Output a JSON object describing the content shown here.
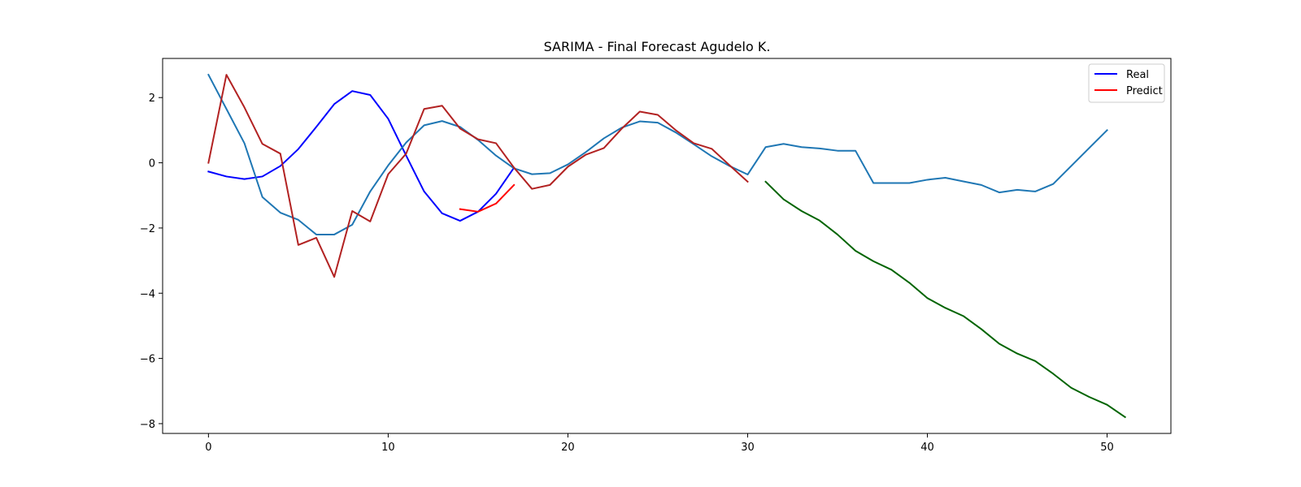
{
  "chart_data": {
    "type": "line",
    "title": "SARIMA - Final Forecast Agudelo K.",
    "xlabel": "",
    "ylabel": "",
    "xlim": [
      -2.55,
      53.55
    ],
    "ylim": [
      -8.3,
      3.2
    ],
    "xticks": [
      0,
      10,
      20,
      30,
      40,
      50
    ],
    "yticks": [
      -8,
      -6,
      -4,
      -2,
      0,
      2
    ],
    "grid": false,
    "legend": {
      "placement": "top-right",
      "entries": [
        {
          "label": "Real",
          "color": "#0000ff"
        },
        {
          "label": "Predict",
          "color": "#ff0000"
        }
      ]
    },
    "series": [
      {
        "name": "Real",
        "color": "#0000ff",
        "x": [
          0,
          1,
          2,
          3,
          4,
          5,
          6,
          7,
          8,
          9,
          10,
          11,
          12,
          13,
          14,
          15,
          16,
          17
        ],
        "y": [
          -0.27,
          -0.42,
          -0.5,
          -0.42,
          -0.1,
          0.42,
          1.1,
          1.8,
          2.2,
          2.08,
          1.35,
          0.22,
          -0.88,
          -1.55,
          -1.78,
          -1.5,
          -0.95,
          -0.15
        ]
      },
      {
        "name": "Predict",
        "color": "#ff0000",
        "x": [
          14,
          15,
          16,
          17
        ],
        "y": [
          -1.42,
          -1.5,
          -1.25,
          -0.68
        ]
      },
      {
        "color": "#1f77b4",
        "x": [
          0,
          1,
          2,
          3,
          4,
          5,
          6,
          7,
          8,
          9,
          10,
          11,
          12,
          13,
          14,
          15,
          16,
          17,
          18,
          19,
          20,
          21,
          22,
          23,
          24,
          25,
          26,
          27,
          28,
          29,
          30,
          31,
          32,
          33,
          34,
          35,
          36,
          37,
          38,
          39,
          40,
          41,
          42,
          43,
          44,
          45,
          46,
          47,
          48,
          49,
          50
        ],
        "y": [
          2.7,
          1.65,
          0.6,
          -1.05,
          -1.53,
          -1.75,
          -2.2,
          -2.2,
          -1.9,
          -0.88,
          -0.08,
          0.62,
          1.15,
          1.28,
          1.1,
          0.7,
          0.22,
          -0.17,
          -0.35,
          -0.32,
          -0.05,
          0.33,
          0.75,
          1.08,
          1.27,
          1.23,
          0.93,
          0.57,
          0.2,
          -0.1,
          -0.36,
          0.48,
          0.58,
          0.48,
          0.44,
          0.37,
          0.37,
          -0.62,
          -0.62,
          -0.62,
          -0.52,
          -0.46,
          -0.57,
          -0.68,
          -0.91,
          -0.83,
          -0.88,
          -0.65,
          -0.1,
          0.45,
          1.0
        ]
      },
      {
        "color": "#b22222",
        "x": [
          0,
          1,
          2,
          3,
          4,
          5,
          6,
          7,
          8,
          9,
          10,
          11,
          12,
          13,
          14,
          15,
          16,
          17,
          18,
          19,
          20,
          21,
          22,
          23,
          24,
          25,
          26,
          27,
          28,
          29,
          30
        ],
        "y": [
          0.0,
          2.7,
          1.7,
          0.58,
          0.28,
          -2.52,
          -2.3,
          -3.5,
          -1.48,
          -1.8,
          -0.35,
          0.28,
          1.65,
          1.75,
          1.05,
          0.72,
          0.6,
          -0.15,
          -0.8,
          -0.68,
          -0.12,
          0.25,
          0.45,
          1.05,
          1.57,
          1.47,
          1.0,
          0.6,
          0.43,
          -0.08,
          -0.58
        ]
      },
      {
        "color": "#006400",
        "x": [
          31,
          32,
          33,
          34,
          35,
          36,
          37,
          38,
          39,
          40,
          41,
          42,
          43,
          44,
          45,
          46,
          47,
          48,
          49,
          50,
          51
        ],
        "y": [
          -0.58,
          -1.12,
          -1.48,
          -1.77,
          -2.2,
          -2.7,
          -3.02,
          -3.28,
          -3.68,
          -4.15,
          -4.45,
          -4.7,
          -5.1,
          -5.55,
          -5.85,
          -6.08,
          -6.47,
          -6.9,
          -7.18,
          -7.42,
          -7.8
        ]
      }
    ]
  }
}
